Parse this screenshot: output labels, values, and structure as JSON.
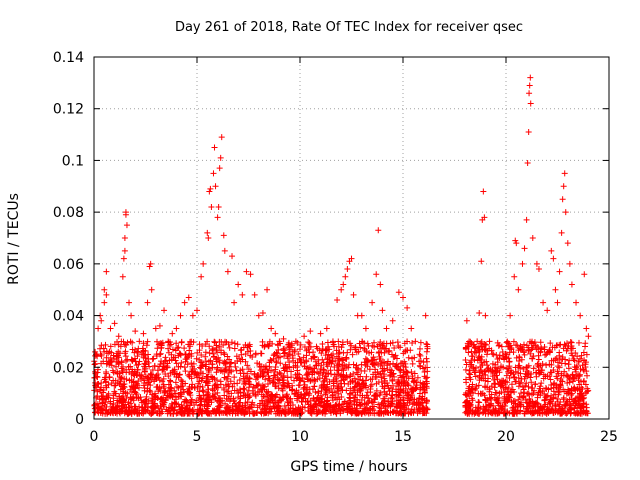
{
  "chart_data": {
    "type": "scatter",
    "title": "Day 261 of 2018, Rate Of TEC Index for receiver qsec",
    "xlabel": "GPS time / hours",
    "ylabel": "ROTI / TECUs",
    "xlim": [
      0,
      25
    ],
    "ylim": [
      0,
      0.14
    ],
    "xticks": [
      0,
      5,
      10,
      15,
      20,
      25
    ],
    "xtick_labels": [
      "0",
      "5",
      "10",
      "15",
      "20",
      "25"
    ],
    "yticks": [
      0,
      0.02,
      0.04,
      0.06,
      0.08,
      0.1,
      0.12,
      0.14
    ],
    "ytick_labels": [
      "0",
      "0.02",
      "0.04",
      "0.06",
      "0.08",
      "0.1",
      "0.12",
      "0.14"
    ],
    "grid": true,
    "marker": "+",
    "series": [
      {
        "name": "ROTI",
        "color": "#ff0000",
        "points": [
          [
            0.1,
            0.025
          ],
          [
            0.2,
            0.035
          ],
          [
            0.3,
            0.04
          ],
          [
            0.35,
            0.038
          ],
          [
            0.5,
            0.045
          ],
          [
            0.5,
            0.05
          ],
          [
            0.6,
            0.057
          ],
          [
            0.6,
            0.048
          ],
          [
            0.8,
            0.035
          ],
          [
            1.0,
            0.037
          ],
          [
            1.2,
            0.032
          ],
          [
            1.4,
            0.055
          ],
          [
            1.45,
            0.062
          ],
          [
            1.5,
            0.065
          ],
          [
            1.5,
            0.07
          ],
          [
            1.55,
            0.079
          ],
          [
            1.55,
            0.08
          ],
          [
            1.6,
            0.075
          ],
          [
            1.7,
            0.045
          ],
          [
            1.8,
            0.04
          ],
          [
            2.0,
            0.034
          ],
          [
            2.2,
            0.03
          ],
          [
            2.4,
            0.033
          ],
          [
            2.6,
            0.045
          ],
          [
            2.7,
            0.059
          ],
          [
            2.75,
            0.06
          ],
          [
            2.8,
            0.05
          ],
          [
            3.0,
            0.035
          ],
          [
            3.2,
            0.036
          ],
          [
            3.4,
            0.042
          ],
          [
            3.6,
            0.03
          ],
          [
            3.8,
            0.033
          ],
          [
            4.0,
            0.035
          ],
          [
            4.2,
            0.04
          ],
          [
            4.4,
            0.045
          ],
          [
            4.6,
            0.047
          ],
          [
            4.8,
            0.04
          ],
          [
            5.0,
            0.042
          ],
          [
            5.2,
            0.055
          ],
          [
            5.3,
            0.06
          ],
          [
            5.5,
            0.072
          ],
          [
            5.55,
            0.07
          ],
          [
            5.6,
            0.088
          ],
          [
            5.65,
            0.089
          ],
          [
            5.7,
            0.082
          ],
          [
            5.8,
            0.095
          ],
          [
            5.85,
            0.105
          ],
          [
            5.9,
            0.09
          ],
          [
            6.0,
            0.078
          ],
          [
            6.05,
            0.082
          ],
          [
            6.1,
            0.097
          ],
          [
            6.15,
            0.101
          ],
          [
            6.2,
            0.109
          ],
          [
            6.3,
            0.071
          ],
          [
            6.35,
            0.065
          ],
          [
            6.5,
            0.057
          ],
          [
            6.7,
            0.063
          ],
          [
            6.8,
            0.045
          ],
          [
            7.0,
            0.052
          ],
          [
            7.2,
            0.048
          ],
          [
            7.4,
            0.057
          ],
          [
            7.6,
            0.056
          ],
          [
            7.8,
            0.048
          ],
          [
            8.0,
            0.04
          ],
          [
            8.2,
            0.041
          ],
          [
            8.4,
            0.05
          ],
          [
            8.6,
            0.035
          ],
          [
            8.8,
            0.033
          ],
          [
            9.0,
            0.03
          ],
          [
            9.2,
            0.031
          ],
          [
            9.5,
            0.028
          ],
          [
            9.8,
            0.03
          ],
          [
            10.0,
            0.027
          ],
          [
            10.2,
            0.032
          ],
          [
            10.5,
            0.034
          ],
          [
            10.8,
            0.028
          ],
          [
            11.0,
            0.033
          ],
          [
            11.3,
            0.035
          ],
          [
            11.6,
            0.03
          ],
          [
            11.8,
            0.046
          ],
          [
            12.0,
            0.05
          ],
          [
            12.1,
            0.052
          ],
          [
            12.2,
            0.055
          ],
          [
            12.3,
            0.058
          ],
          [
            12.4,
            0.061
          ],
          [
            12.5,
            0.062
          ],
          [
            12.6,
            0.048
          ],
          [
            12.8,
            0.04
          ],
          [
            13.0,
            0.04
          ],
          [
            13.2,
            0.035
          ],
          [
            13.5,
            0.045
          ],
          [
            13.7,
            0.056
          ],
          [
            13.8,
            0.073
          ],
          [
            13.9,
            0.052
          ],
          [
            14.0,
            0.042
          ],
          [
            14.2,
            0.035
          ],
          [
            14.5,
            0.038
          ],
          [
            14.8,
            0.049
          ],
          [
            15.0,
            0.047
          ],
          [
            15.2,
            0.043
          ],
          [
            15.4,
            0.035
          ],
          [
            15.6,
            0.03
          ],
          [
            15.8,
            0.025
          ],
          [
            16.0,
            0.022
          ],
          [
            16.1,
            0.04
          ],
          [
            18.1,
            0.038
          ],
          [
            18.2,
            0.028
          ],
          [
            18.4,
            0.02
          ],
          [
            18.6,
            0.03
          ],
          [
            18.7,
            0.041
          ],
          [
            18.8,
            0.061
          ],
          [
            18.85,
            0.077
          ],
          [
            18.9,
            0.088
          ],
          [
            18.95,
            0.078
          ],
          [
            19.0,
            0.04
          ],
          [
            19.2,
            0.03
          ],
          [
            19.4,
            0.025
          ],
          [
            19.6,
            0.022
          ],
          [
            19.8,
            0.028
          ],
          [
            20.0,
            0.024
          ],
          [
            20.2,
            0.04
          ],
          [
            20.4,
            0.055
          ],
          [
            20.45,
            0.069
          ],
          [
            20.5,
            0.068
          ],
          [
            20.6,
            0.05
          ],
          [
            20.8,
            0.06
          ],
          [
            20.9,
            0.066
          ],
          [
            21.0,
            0.077
          ],
          [
            21.05,
            0.099
          ],
          [
            21.1,
            0.111
          ],
          [
            21.12,
            0.126
          ],
          [
            21.15,
            0.129
          ],
          [
            21.18,
            0.132
          ],
          [
            21.2,
            0.122
          ],
          [
            21.3,
            0.07
          ],
          [
            21.5,
            0.06
          ],
          [
            21.6,
            0.058
          ],
          [
            21.8,
            0.045
          ],
          [
            22.0,
            0.042
          ],
          [
            22.2,
            0.065
          ],
          [
            22.3,
            0.062
          ],
          [
            22.4,
            0.05
          ],
          [
            22.5,
            0.045
          ],
          [
            22.6,
            0.057
          ],
          [
            22.7,
            0.072
          ],
          [
            22.75,
            0.085
          ],
          [
            22.8,
            0.09
          ],
          [
            22.85,
            0.095
          ],
          [
            22.9,
            0.08
          ],
          [
            23.0,
            0.068
          ],
          [
            23.1,
            0.06
          ],
          [
            23.2,
            0.052
          ],
          [
            23.4,
            0.045
          ],
          [
            23.6,
            0.04
          ],
          [
            23.8,
            0.056
          ],
          [
            23.9,
            0.035
          ],
          [
            24.0,
            0.032
          ]
        ],
        "base_band": {
          "description": "dense continuous cloud of points from 0.002 to about 0.03 TECUs across observed intervals",
          "intervals_hours": [
            [
              0,
              16.2
            ],
            [
              18.0,
              24.0
            ]
          ],
          "y_range": [
            0.002,
            0.03
          ]
        }
      }
    ]
  }
}
